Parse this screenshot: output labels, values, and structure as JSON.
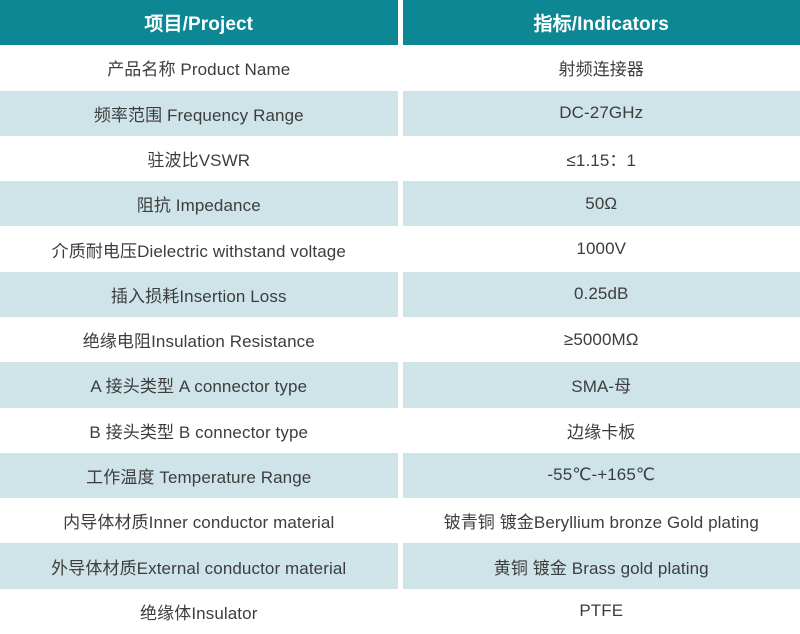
{
  "colors": {
    "header_bg": "#0e8795",
    "header_text": "#ffffff",
    "alt_row_bg": "#cfe4e9",
    "plain_row_bg": "#ffffff",
    "body_text": "#3d3d3d"
  },
  "header": {
    "project": "项目/Project",
    "indicators": "指标/Indicators"
  },
  "rows": [
    {
      "project": "产品名称 Product Name",
      "indicator": "射频连接器"
    },
    {
      "project": "频率范围 Frequency Range",
      "indicator": "DC-27GHz"
    },
    {
      "project": "驻波比VSWR",
      "indicator": "≤1.15：1"
    },
    {
      "project": "阻抗 Impedance",
      "indicator": "50Ω"
    },
    {
      "project": "介质耐电压Dielectric withstand voltage",
      "indicator": "1000V"
    },
    {
      "project": "插入损耗Insertion Loss",
      "indicator": "0.25dB"
    },
    {
      "project": "绝缘电阻Insulation Resistance",
      "indicator": "≥5000MΩ"
    },
    {
      "project": "A 接头类型  A connector type",
      "indicator": "SMA-母"
    },
    {
      "project": "B 接头类型  B connector type",
      "indicator": "边缘卡板"
    },
    {
      "project": "工作温度 Temperature Range",
      "indicator": "-55℃-+165℃"
    },
    {
      "project": "内导体材质Inner conductor material",
      "indicator": "铍青铜 镀金Beryllium bronze Gold plating"
    },
    {
      "project": "外导体材质External conductor material",
      "indicator": "黄铜 镀金 Brass gold plating"
    },
    {
      "project": "绝缘体Insulator",
      "indicator": "PTFE"
    }
  ]
}
